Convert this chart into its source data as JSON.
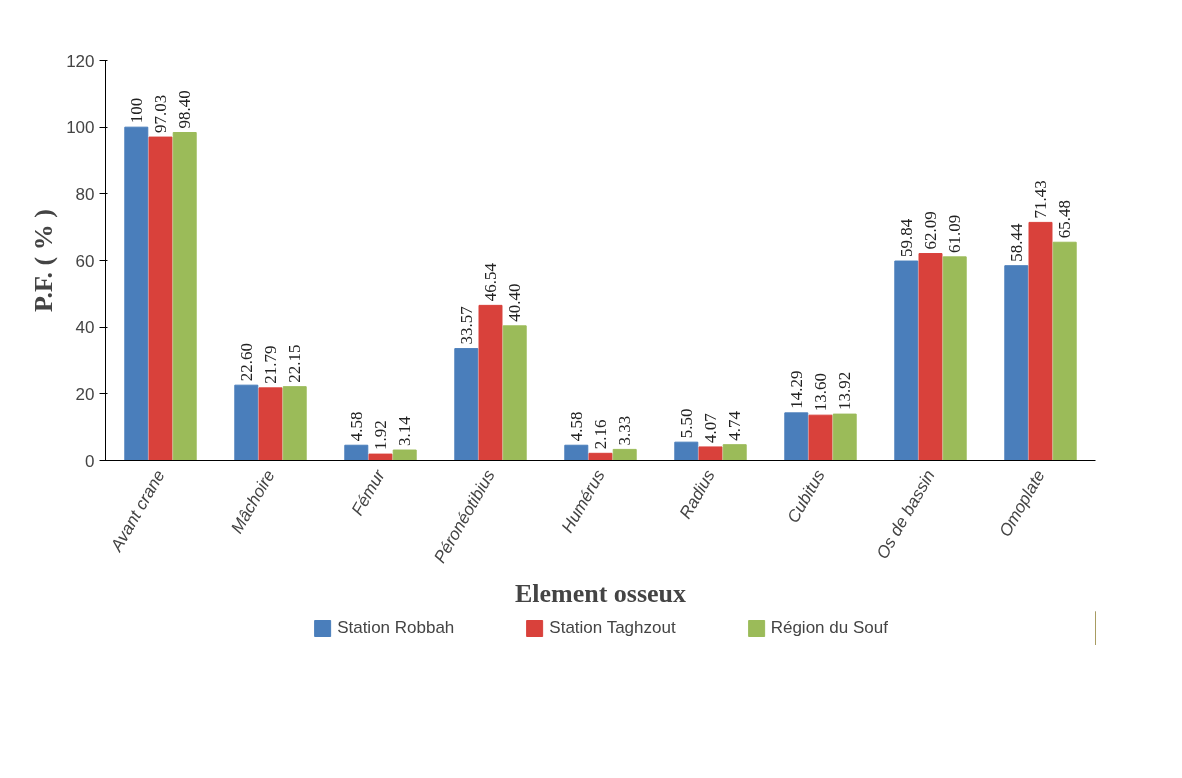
{
  "chart_data": {
    "type": "bar",
    "xlabel": "Element osseux",
    "ylabel": "P.F. ( % )",
    "categories": [
      "Avant crane",
      "Mâchoire",
      "Fémur",
      "Péronéotibius",
      "Humérus",
      "Radius",
      "Cubitus",
      "Os de bassin",
      "Omoplate"
    ],
    "series": [
      {
        "name": "Station Robbah",
        "color": "#4a7ebb",
        "values": [
          100,
          22.6,
          4.58,
          33.57,
          4.58,
          5.5,
          14.29,
          59.84,
          58.44
        ],
        "value_labels": [
          "100",
          "22.60",
          "4.58",
          "33.57",
          "4.58",
          "5.50",
          "14.29",
          "59.84",
          "58.44"
        ]
      },
      {
        "name": "Station Taghzout",
        "color": "#d9413b",
        "values": [
          97.03,
          21.79,
          1.92,
          46.54,
          2.16,
          4.07,
          13.6,
          62.09,
          71.43
        ],
        "value_labels": [
          "97.03",
          "21.79",
          "1.92",
          "46.54",
          "2.16",
          "4.07",
          "13.60",
          "62.09",
          "71.43"
        ]
      },
      {
        "name": "Région du Souf",
        "color": "#9bbb59",
        "values": [
          98.4,
          22.15,
          3.14,
          40.4,
          3.33,
          4.74,
          13.92,
          61.09,
          65.48
        ],
        "value_labels": [
          "98.40",
          "22.15",
          "3.14",
          "40.40",
          "3.33",
          "4.74",
          "13.92",
          "61.09",
          "65.48"
        ]
      }
    ],
    "ylim": [
      0,
      120
    ],
    "yticks": [
      0,
      20,
      40,
      60,
      80,
      100,
      120
    ],
    "grid": false,
    "legend": "bottom"
  }
}
